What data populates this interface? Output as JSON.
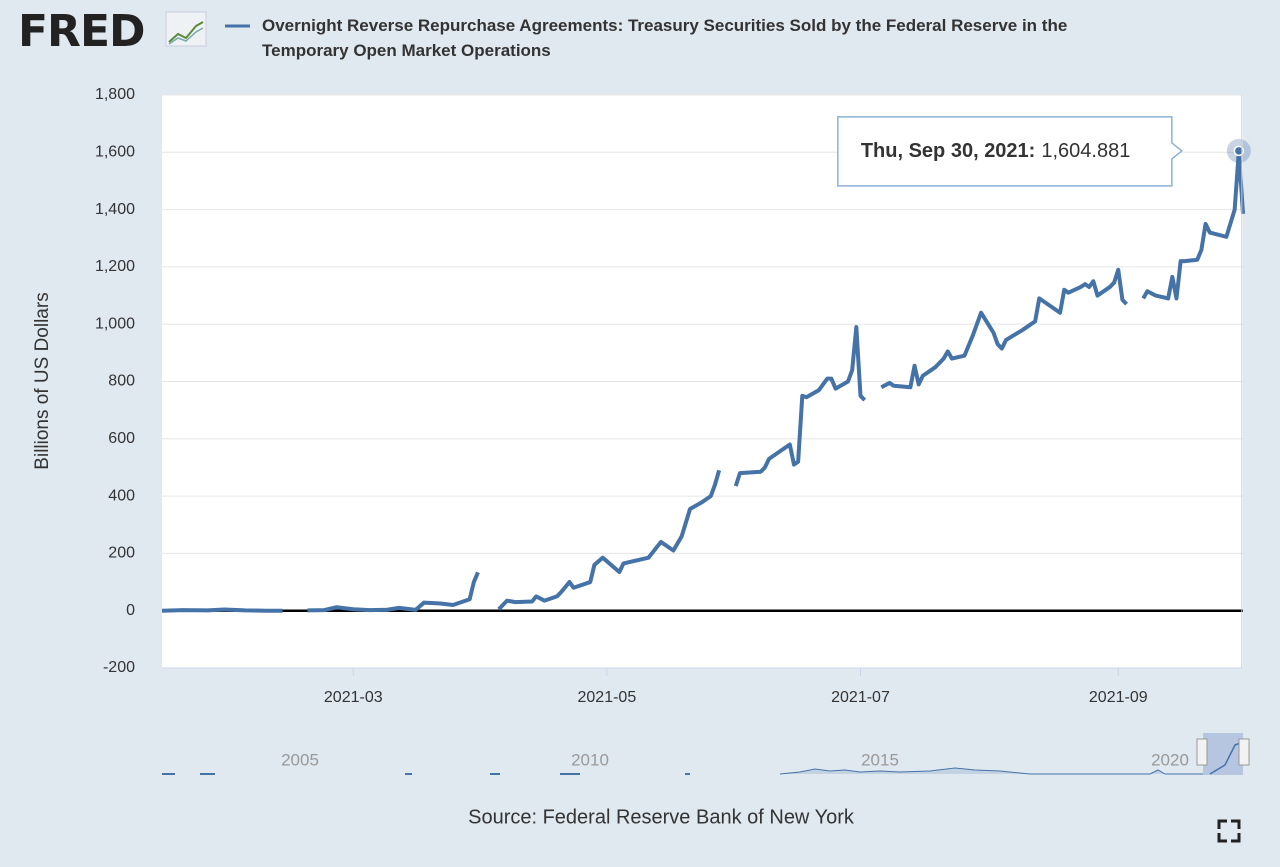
{
  "logo": "FRED",
  "chart_data": {
    "type": "line",
    "title": "Overnight Reverse Repurchase Agreements: Treasury Securities Sold by the Federal Reserve in the Temporary Open Market Operations",
    "ylabel": "Billions of US Dollars",
    "source": "Source: Federal Reserve Bank of New York",
    "tooltip": "Thu, Sep 30, 2021:",
    "navigator_labels": [
      "2005",
      "2010",
      "2015",
      "2020"
    ],
    "xlim": [
      "2021-01-14",
      "2021-10-01"
    ],
    "xticks": [
      {
        "value": "2021-03-01",
        "label": "2021-03"
      },
      {
        "value": "2021-05-01",
        "label": "2021-05"
      },
      {
        "value": "2021-07-01",
        "label": "2021-07"
      },
      {
        "value": "2021-09-01",
        "label": "2021-09"
      }
    ],
    "ylim": [
      -200,
      1800
    ],
    "yticks": [
      -200,
      0,
      200,
      400,
      600,
      800,
      {
        "value": 1000,
        "label": "1,000"
      },
      {
        "value": 1200,
        "label": "1,200"
      },
      {
        "value": 1400,
        "label": "1,400"
      },
      {
        "value": 1600,
        "label": "1,600"
      },
      {
        "value": 1800,
        "label": "1,800"
      }
    ],
    "grid": true,
    "x": [
      "2021-01-14",
      "2021-01-19",
      "2021-01-25",
      "2021-01-29",
      "2021-02-03",
      "2021-02-08",
      "2021-02-12",
      "2021-02-15",
      "2021-02-18",
      "2021-02-22",
      "2021-02-25",
      "2021-03-01",
      "2021-03-05",
      "2021-03-09",
      "2021-03-12",
      "2021-03-16",
      "2021-03-18",
      "2021-03-22",
      "2021-03-25",
      "2021-03-29",
      "2021-03-30",
      "2021-03-31",
      "2021-04-01",
      "2021-04-05",
      "2021-04-07",
      "2021-04-09",
      "2021-04-13",
      "2021-04-14",
      "2021-04-16",
      "2021-04-19",
      "2021-04-20",
      "2021-04-22",
      "2021-04-23",
      "2021-04-27",
      "2021-04-28",
      "2021-04-30",
      "2021-05-04",
      "2021-05-05",
      "2021-05-11",
      "2021-05-14",
      "2021-05-17",
      "2021-05-19",
      "2021-05-21",
      "2021-05-24",
      "2021-05-26",
      "2021-05-27",
      "2021-05-28",
      "2021-05-31",
      "2021-06-01",
      "2021-06-02",
      "2021-06-07",
      "2021-06-08",
      "2021-06-09",
      "2021-06-14",
      "2021-06-15",
      "2021-06-16",
      "2021-06-17",
      "2021-06-18",
      "2021-06-21",
      "2021-06-23",
      "2021-06-24",
      "2021-06-25",
      "2021-06-28",
      "2021-06-29",
      "2021-06-30",
      "2021-07-01",
      "2021-07-02",
      "2021-07-05",
      "2021-07-06",
      "2021-07-08",
      "2021-07-09",
      "2021-07-13",
      "2021-07-14",
      "2021-07-15",
      "2021-07-16",
      "2021-07-19",
      "2021-07-21",
      "2021-07-22",
      "2021-07-23",
      "2021-07-26",
      "2021-07-28",
      "2021-07-30",
      "2021-08-02",
      "2021-08-03",
      "2021-08-04",
      "2021-08-05",
      "2021-08-09",
      "2021-08-11",
      "2021-08-12",
      "2021-08-13",
      "2021-08-16",
      "2021-08-18",
      "2021-08-19",
      "2021-08-20",
      "2021-08-23",
      "2021-08-24",
      "2021-08-25",
      "2021-08-26",
      "2021-08-27",
      "2021-08-30",
      "2021-08-31",
      "2021-09-01",
      "2021-09-02",
      "2021-09-03",
      "2021-09-06",
      "2021-09-07",
      "2021-09-08",
      "2021-09-10",
      "2021-09-13",
      "2021-09-14",
      "2021-09-15",
      "2021-09-16",
      "2021-09-17",
      "2021-09-20",
      "2021-09-21",
      "2021-09-22",
      "2021-09-23",
      "2021-09-27",
      "2021-09-29",
      "2021-09-30",
      "2021-10-01"
    ],
    "series": [
      {
        "name": "Overnight Reverse Repurchase Agreements: Treasury Securities Sold by the Federal Reserve in the Temporary Open Market Operations",
        "color": "#4572a7",
        "values": [
          0,
          2,
          1,
          4,
          1,
          0,
          0,
          null,
          1,
          2,
          12,
          5,
          2,
          3,
          10,
          3,
          28,
          25,
          20,
          40,
          100,
          134,
          null,
          5,
          35,
          30,
          32,
          50,
          35,
          50,
          65,
          100,
          80,
          100,
          160,
          185,
          135,
          165,
          185,
          240,
          210,
          260,
          355,
          380,
          400,
          440,
          490,
          null,
          435,
          480,
          485,
          500,
          530,
          580,
          510,
          520,
          750,
          745,
          770,
          810,
          810,
          775,
          800,
          840,
          990,
          750,
          735,
          null,
          780,
          795,
          785,
          780,
          855,
          790,
          820,
          850,
          880,
          905,
          880,
          890,
          960,
          1040,
          970,
          930,
          915,
          945,
          980,
          1000,
          1010,
          1090,
          1060,
          1040,
          1120,
          1110,
          1130,
          1140,
          1130,
          1150,
          1100,
          1130,
          1145,
          1190,
          1085,
          1070,
          null,
          1090,
          1115,
          1100,
          1090,
          1165,
          1090,
          1220,
          1220,
          1225,
          1260,
          1350,
          1320,
          1305,
          1400,
          1604.881,
          1385
        ],
        "value_labels": [
          null,
          null,
          null,
          null,
          null,
          null,
          null,
          null,
          null,
          null,
          null,
          null,
          null,
          null,
          null,
          null,
          null,
          null,
          null,
          null,
          null,
          null,
          null,
          null,
          null,
          null,
          null,
          null,
          null,
          null,
          null,
          null,
          null,
          null,
          null,
          null,
          null,
          null,
          null,
          null,
          null,
          null,
          null,
          null,
          null,
          null,
          null,
          null,
          null,
          null,
          null,
          null,
          null,
          null,
          null,
          null,
          null,
          null,
          null,
          null,
          null,
          null,
          null,
          null,
          null,
          null,
          null,
          null,
          null,
          null,
          null,
          null,
          null,
          null,
          null,
          null,
          null,
          null,
          null,
          null,
          null,
          null,
          null,
          null,
          null,
          null,
          null,
          null,
          null,
          null,
          null,
          null,
          null,
          null,
          null,
          null,
          null,
          null,
          null,
          null,
          null,
          null,
          null,
          null,
          null,
          null,
          null,
          null,
          null,
          null,
          null,
          null,
          null,
          null,
          null,
          null,
          null,
          null,
          null,
          "1,604.881",
          null
        ]
      }
    ]
  }
}
